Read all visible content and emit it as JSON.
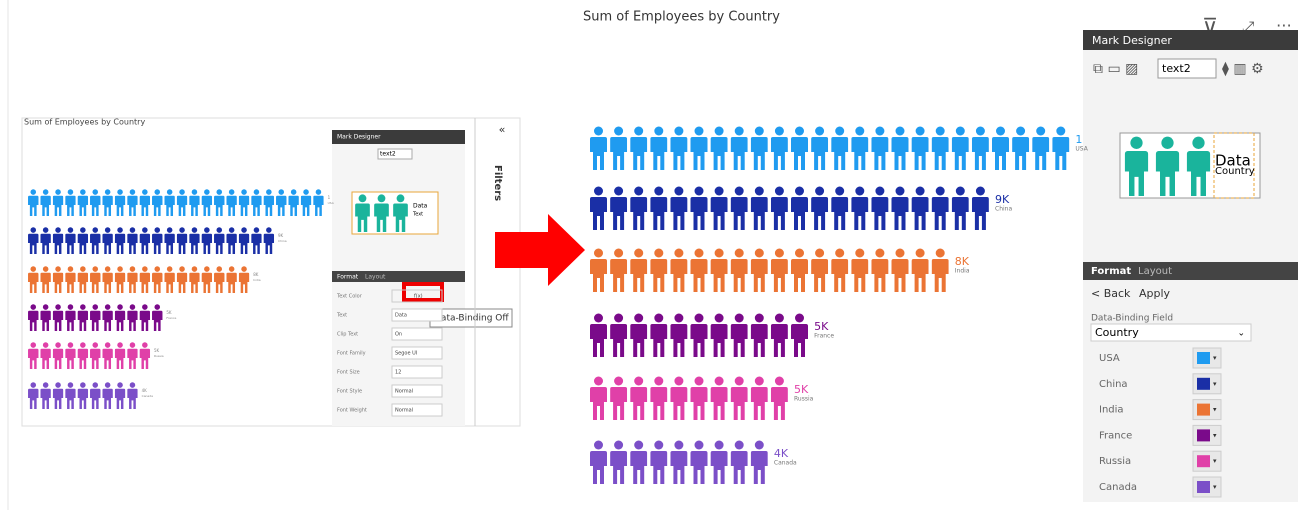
{
  "left_visual": {
    "title": "Sum of Employees by Country",
    "panel_title": "Mark Designer",
    "select": "text2",
    "preview_text": "Data",
    "preview_sub": "Text",
    "tabs": [
      "Format",
      "Layout"
    ],
    "fields": [
      {
        "label": "Text Color",
        "value": "f(x)"
      },
      {
        "label": "Text",
        "value": "Data"
      },
      {
        "label": "Clip Text",
        "value": "On"
      },
      {
        "label": "Font Family",
        "value": "Segoe UI"
      },
      {
        "label": "Font Size",
        "value": "12"
      },
      {
        "label": "Font Style",
        "value": "Normal"
      },
      {
        "label": "Font Weight",
        "value": "Normal"
      }
    ],
    "tooltip": "Data-Binding Off",
    "filters": "Filters"
  },
  "right_visual": {
    "title": "Sum of Employees by Country",
    "rows": [
      {
        "category": "USA",
        "label": "1",
        "color": "#1f9bf0",
        "icons": 24
      },
      {
        "category": "China",
        "label": "9K",
        "color": "#1a2fa6",
        "icons": 20
      },
      {
        "category": "India",
        "label": "8K",
        "color": "#eb7434",
        "icons": 18
      },
      {
        "category": "France",
        "label": "5K",
        "color": "#7a0a8a",
        "icons": 11
      },
      {
        "category": "Russia",
        "label": "5K",
        "color": "#e040a8",
        "icons": 10
      },
      {
        "category": "Canada",
        "label": "4K",
        "color": "#7b4fc8",
        "icons": 9
      }
    ]
  },
  "mark_designer": {
    "title": "Mark Designer",
    "select": "text2",
    "preview_text": "Data",
    "preview_sub": "Country",
    "preview_color": "#1ab49c",
    "tabs": [
      "Format",
      "Layout"
    ],
    "back": "< Back",
    "apply": "Apply",
    "field_label": "Data-Binding Field",
    "field": "Country",
    "colors": [
      {
        "name": "USA",
        "color": "#1f9bf0"
      },
      {
        "name": "China",
        "color": "#1a2fa6"
      },
      {
        "name": "India",
        "color": "#eb7434"
      },
      {
        "name": "France",
        "color": "#7a0a8a"
      },
      {
        "name": "Russia",
        "color": "#e040a8"
      },
      {
        "name": "Canada",
        "color": "#7b4fc8"
      }
    ]
  }
}
